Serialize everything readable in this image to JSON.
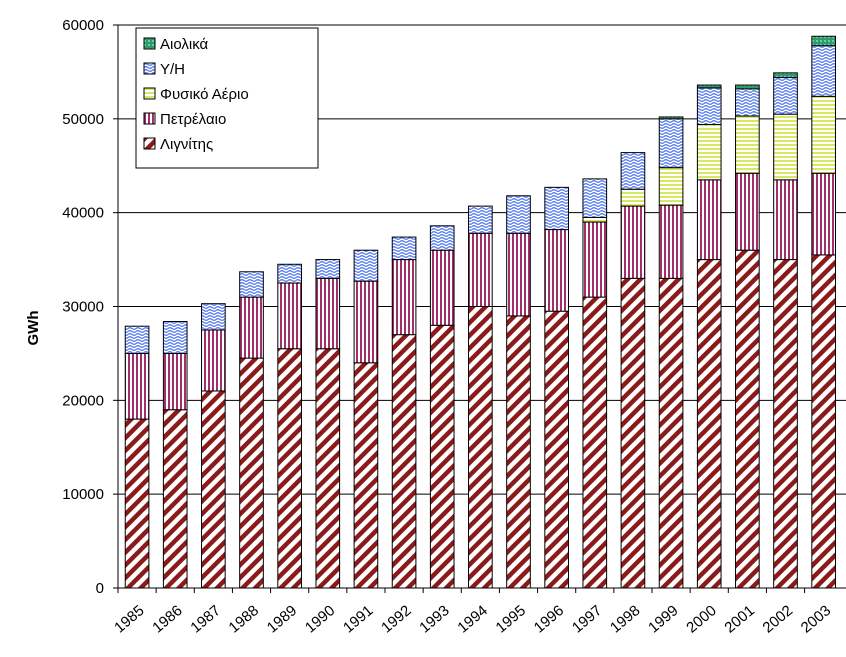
{
  "chart_data": {
    "type": "bar",
    "stacked": true,
    "ylabel": "GWh",
    "xlabel": "",
    "title": "",
    "ylim": [
      0,
      60000
    ],
    "yticks": [
      0,
      10000,
      20000,
      30000,
      40000,
      50000,
      60000
    ],
    "grid": true,
    "legend_position": "top-left",
    "categories": [
      "1985",
      "1986",
      "1987",
      "1988",
      "1989",
      "1990",
      "1991",
      "1992",
      "1993",
      "1994",
      "1995",
      "1996",
      "1997",
      "1998",
      "1999",
      "2000",
      "2001",
      "2002",
      "2003"
    ],
    "series": [
      {
        "name": "Λιγνίτης",
        "color": "#8b1a1a",
        "pattern": "diagonal-stripes",
        "values": [
          18000,
          19000,
          21000,
          24500,
          25500,
          25500,
          24000,
          27000,
          28000,
          30000,
          29000,
          29500,
          31000,
          33000,
          33000,
          35000,
          36000,
          35000,
          35500
        ]
      },
      {
        "name": "Πετρέλαιο",
        "color": "#a0306a",
        "pattern": "vertical-stripes",
        "values": [
          7000,
          6000,
          6500,
          6500,
          7000,
          7500,
          8700,
          8000,
          8000,
          7800,
          8800,
          8700,
          8000,
          7700,
          7800,
          8500,
          8200,
          8500,
          8700
        ]
      },
      {
        "name": "Φυσικό Αέριο",
        "color": "#e8f080",
        "pattern": "horizontal-stripes",
        "values": [
          0,
          0,
          0,
          0,
          0,
          0,
          0,
          0,
          0,
          0,
          0,
          0,
          500,
          1800,
          4000,
          5900,
          6100,
          7000,
          8200
        ]
      },
      {
        "name": "Υ/Η",
        "color": "#5a7ff0",
        "pattern": "waves",
        "values": [
          2900,
          3400,
          2800,
          2700,
          2000,
          2000,
          3300,
          2400,
          2600,
          2900,
          4000,
          4500,
          4100,
          3900,
          5200,
          3900,
          2900,
          3900,
          5400
        ]
      },
      {
        "name": "Αιολικά",
        "color": "#2f9a6e",
        "pattern": "solid",
        "values": [
          0,
          0,
          0,
          0,
          0,
          0,
          0,
          0,
          0,
          0,
          0,
          0,
          0,
          0,
          200,
          300,
          400,
          500,
          1000
        ]
      }
    ],
    "legend_order": [
      "Αιολικά",
      "Υ/Η",
      "Φυσικό Αέριο",
      "Πετρέλαιο",
      "Λιγνίτης"
    ]
  }
}
